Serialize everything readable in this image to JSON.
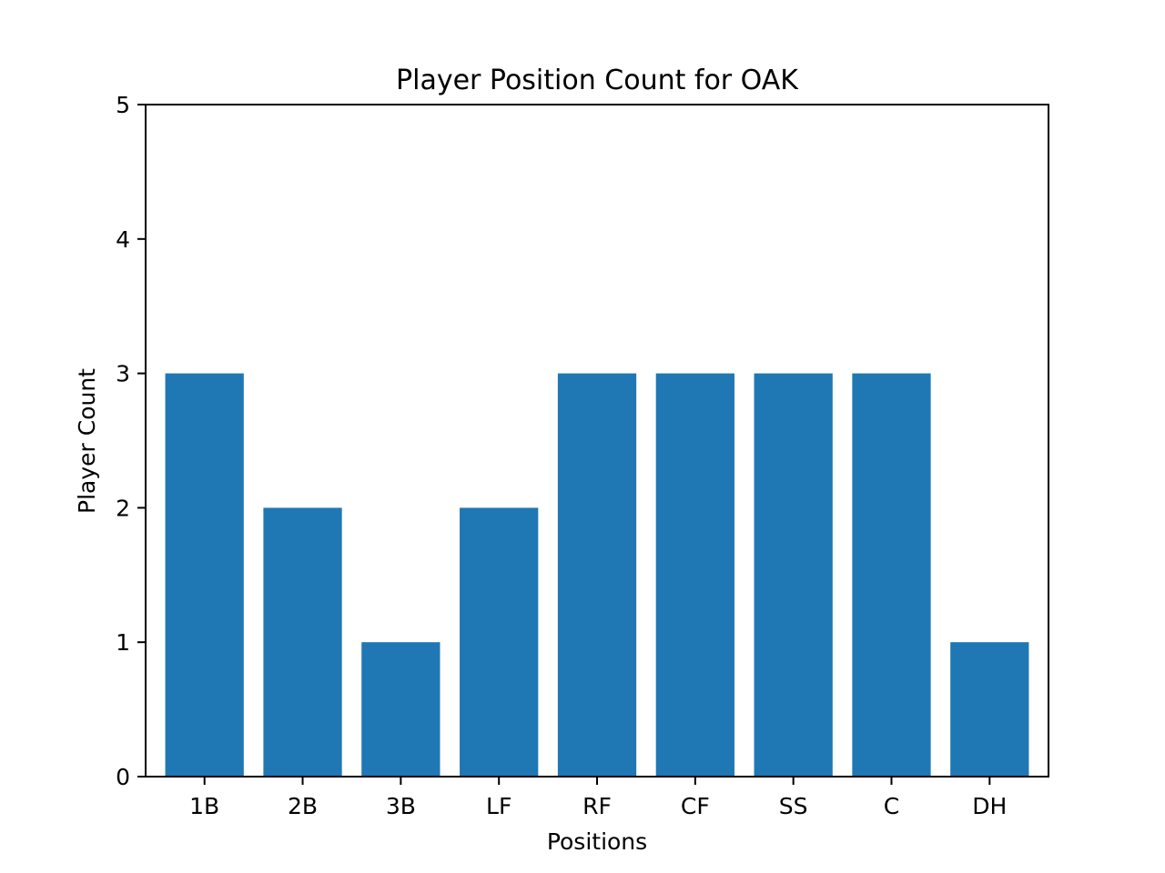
{
  "chart_data": {
    "type": "bar",
    "title": "Player Position Count for OAK",
    "xlabel": "Positions",
    "ylabel": "Player Count",
    "categories": [
      "1B",
      "2B",
      "3B",
      "LF",
      "RF",
      "CF",
      "SS",
      "C",
      "DH"
    ],
    "values": [
      3,
      2,
      1,
      2,
      3,
      3,
      3,
      3,
      1
    ],
    "ylim": [
      0,
      5
    ],
    "yticks": [
      0,
      1,
      2,
      3,
      4,
      5
    ],
    "grid": false,
    "bar_color": "#1f77b4"
  }
}
